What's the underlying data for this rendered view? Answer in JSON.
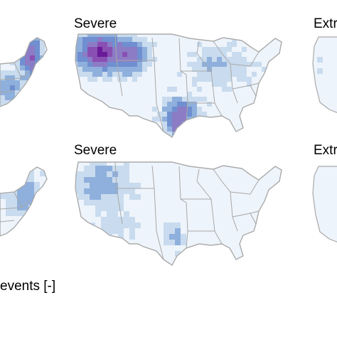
{
  "panels": {
    "row1_center_title": "Severe",
    "row1_right_title": "Extr",
    "row2_center_title": "Severe",
    "row2_right_title": "Extr"
  },
  "legend": {
    "label_fragment": "events [-]"
  },
  "colors": {
    "background": "#ffffff",
    "land": "#eef4fb",
    "border": "#a8a8a8",
    "blue_light": "#c9dbee",
    "blue_mid": "#8fb0dc",
    "blue_dark": "#6f8fd0",
    "purple_light": "#8c7cc6",
    "purple_mid": "#8a4fb2",
    "purple_dark": "#6a1b9a"
  }
}
